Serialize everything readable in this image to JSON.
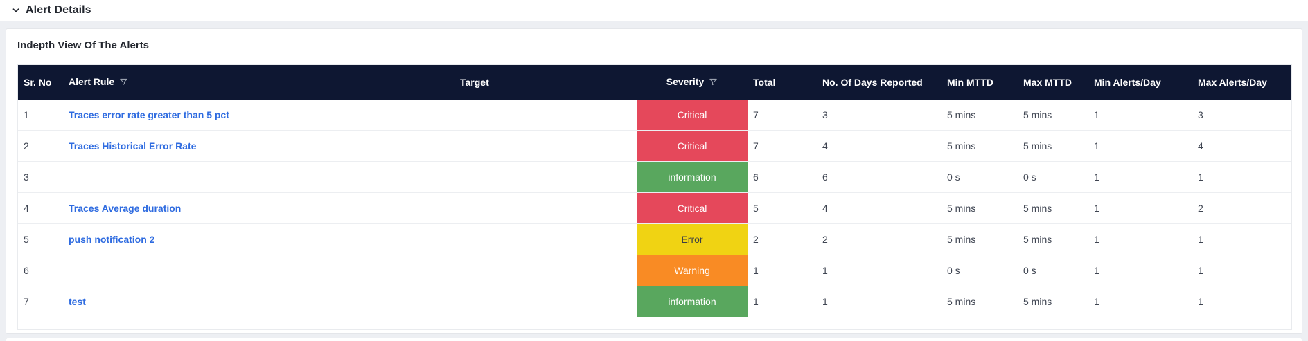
{
  "page": {
    "section_header": {
      "title": "Alert Details",
      "chevron_icon": "chevron-down-icon"
    },
    "card": {
      "title": "Indepth View Of The Alerts",
      "table": {
        "columns": [
          {
            "key": "sr_no",
            "label": "Sr. No",
            "filter": false
          },
          {
            "key": "alert_rule",
            "label": "Alert Rule",
            "filter": true
          },
          {
            "key": "target",
            "label": "Target",
            "filter": false
          },
          {
            "key": "severity",
            "label": "Severity",
            "filter": true
          },
          {
            "key": "total",
            "label": "Total",
            "filter": false
          },
          {
            "key": "days_reported",
            "label": "No. Of Days Reported",
            "filter": false
          },
          {
            "key": "min_mttd",
            "label": "Min MTTD",
            "filter": false
          },
          {
            "key": "max_mttd",
            "label": "Max MTTD",
            "filter": false
          },
          {
            "key": "min_alerts_day",
            "label": "Min Alerts/Day",
            "filter": false
          },
          {
            "key": "max_alerts_day",
            "label": "Max Alerts/Day",
            "filter": false
          }
        ],
        "rows": [
          {
            "sr_no": "1",
            "alert_rule": "Traces error rate greater than 5 pct",
            "target": "",
            "severity": "Critical",
            "total": "7",
            "days_reported": "3",
            "min_mttd": "5 mins",
            "max_mttd": "5 mins",
            "min_alerts_day": "1",
            "max_alerts_day": "3"
          },
          {
            "sr_no": "2",
            "alert_rule": "Traces Historical Error Rate",
            "target": "",
            "severity": "Critical",
            "total": "7",
            "days_reported": "4",
            "min_mttd": "5 mins",
            "max_mttd": "5 mins",
            "min_alerts_day": "1",
            "max_alerts_day": "4"
          },
          {
            "sr_no": "3",
            "alert_rule": "",
            "target": "",
            "severity": "information",
            "total": "6",
            "days_reported": "6",
            "min_mttd": "0 s",
            "max_mttd": "0 s",
            "min_alerts_day": "1",
            "max_alerts_day": "1"
          },
          {
            "sr_no": "4",
            "alert_rule": "Traces Average duration",
            "target": "",
            "severity": "Critical",
            "total": "5",
            "days_reported": "4",
            "min_mttd": "5 mins",
            "max_mttd": "5 mins",
            "min_alerts_day": "1",
            "max_alerts_day": "2"
          },
          {
            "sr_no": "5",
            "alert_rule": "push notification 2",
            "target": "",
            "severity": "Error",
            "total": "2",
            "days_reported": "2",
            "min_mttd": "5 mins",
            "max_mttd": "5 mins",
            "min_alerts_day": "1",
            "max_alerts_day": "1"
          },
          {
            "sr_no": "6",
            "alert_rule": "",
            "target": "",
            "severity": "Warning",
            "total": "1",
            "days_reported": "1",
            "min_mttd": "0 s",
            "max_mttd": "0 s",
            "min_alerts_day": "1",
            "max_alerts_day": "1"
          },
          {
            "sr_no": "7",
            "alert_rule": "test",
            "target": "",
            "severity": "information",
            "total": "1",
            "days_reported": "1",
            "min_mttd": "5 mins",
            "max_mttd": "5 mins",
            "min_alerts_day": "1",
            "max_alerts_day": "1"
          }
        ],
        "severity_colors": {
          "Critical": {
            "bg": "#e5485b",
            "text": "#ffffff"
          },
          "Error": {
            "bg": "#f0d313",
            "text": "#3c3f45"
          },
          "Warning": {
            "bg": "#f98b24",
            "text": "#ffffff"
          },
          "information": {
            "bg": "#59a75e",
            "text": "#ffffff"
          }
        },
        "header_bg": "#0e1732",
        "link_color": "#2e6be0",
        "filter_icon_color": "#9aa1ae"
      }
    }
  }
}
